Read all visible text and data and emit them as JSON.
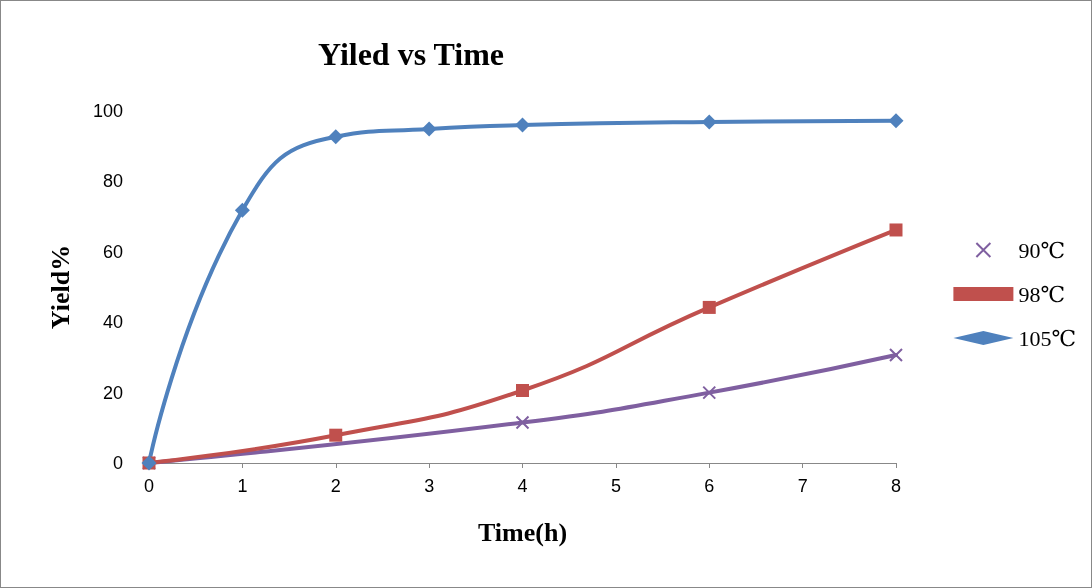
{
  "chart_data": {
    "type": "line",
    "title": "Yiled vs Time",
    "xlabel": "Time(h)",
    "ylabel": "Yield%",
    "xlim": [
      0,
      8
    ],
    "xticks": [
      0,
      1,
      2,
      3,
      4,
      5,
      6,
      7,
      8
    ],
    "ylim": [
      0,
      100
    ],
    "yticks": [
      0,
      20,
      40,
      60,
      80,
      100
    ],
    "grid": false,
    "legend": "right",
    "line_style": "solid",
    "series": [
      {
        "name": "90℃",
        "color": "#7f5fa0",
        "marker": "cross",
        "x": [
          0,
          4,
          6,
          8
        ],
        "values": [
          0,
          11.5,
          20,
          30.7
        ]
      },
      {
        "name": "98℃",
        "color": "#c0504d",
        "marker": "square",
        "x": [
          0,
          2,
          4,
          6,
          8
        ],
        "values": [
          0,
          7.9,
          20.6,
          44.2,
          66.2
        ]
      },
      {
        "name": "105℃",
        "color": "#4f81bd",
        "marker": "diamond",
        "x": [
          0,
          1,
          2,
          3,
          4,
          6,
          8
        ],
        "values": [
          0,
          71.8,
          92.7,
          94.9,
          96,
          96.9,
          97.2
        ]
      }
    ]
  }
}
